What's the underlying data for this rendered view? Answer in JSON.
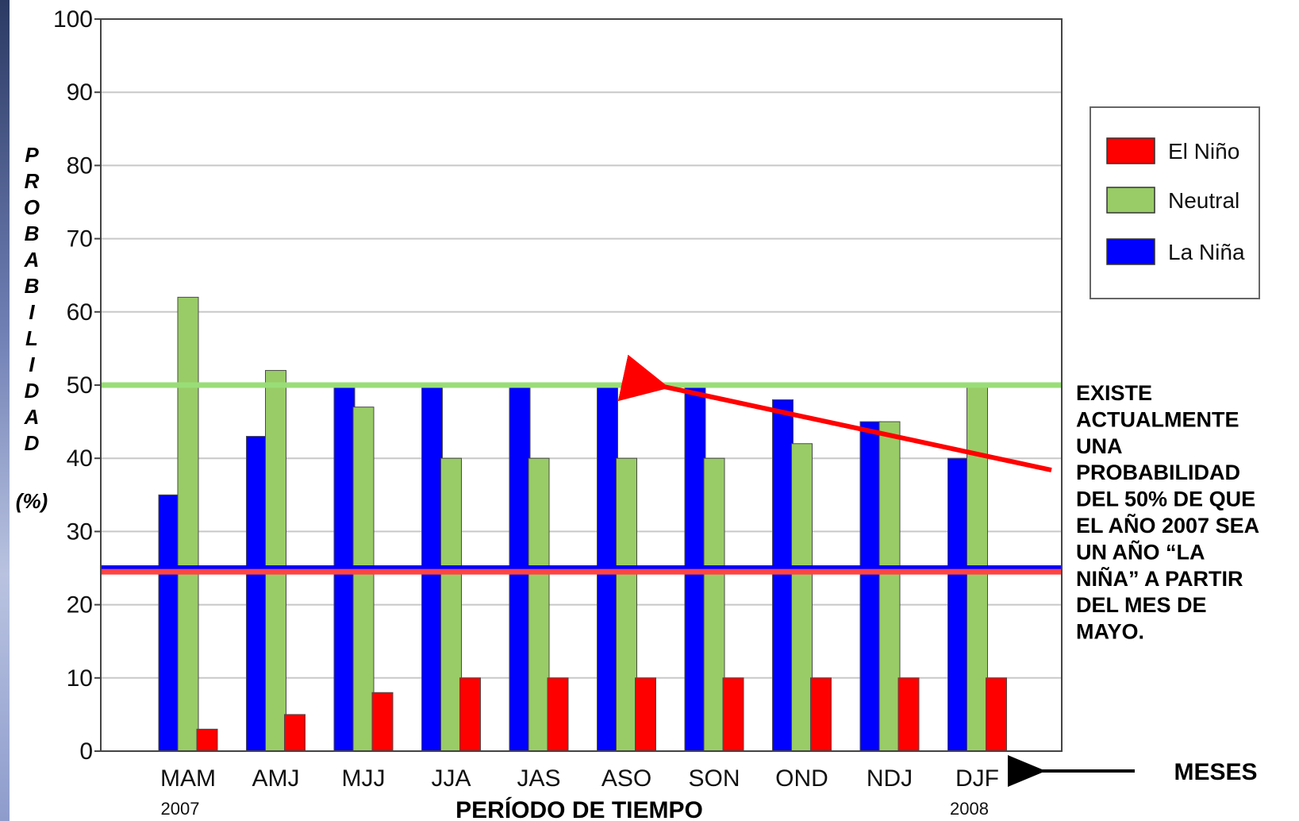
{
  "chart_data": {
    "type": "bar",
    "categories": [
      "MAM",
      "AMJ",
      "MJJ",
      "JJA",
      "JAS",
      "ASO",
      "SON",
      "OND",
      "NDJ",
      "DJF"
    ],
    "category_years": [
      "2007",
      "",
      "",
      "",
      "",
      "",
      "",
      "",
      "",
      "2008"
    ],
    "series": [
      {
        "name": "La Niña",
        "color": "#0000ff",
        "values": [
          35,
          43,
          50,
          50,
          50,
          50,
          50,
          48,
          45,
          40
        ]
      },
      {
        "name": "Neutral",
        "color": "#99cc66",
        "values": [
          62,
          52,
          47,
          40,
          40,
          40,
          40,
          42,
          45,
          50
        ]
      },
      {
        "name": "El Niño",
        "color": "#ff0000",
        "values": [
          3,
          5,
          8,
          10,
          10,
          10,
          10,
          10,
          10,
          10
        ]
      }
    ],
    "legend_order": [
      "El Niño",
      "Neutral",
      "La Niña"
    ],
    "legend_position": "top-right",
    "xlabel": "PERÍODO DE TIEMPO",
    "ylabel": "PROBABILIDAD",
    "yunit": "(%)",
    "ylim": [
      0,
      100
    ],
    "yticks": [
      0,
      10,
      20,
      30,
      40,
      50,
      60,
      70,
      80,
      90,
      100
    ],
    "grid": true,
    "reference_lines": [
      {
        "value": 50,
        "color": "#99dd77"
      },
      {
        "value": 25,
        "color": "#0000ff"
      },
      {
        "value": 24.5,
        "color": "#ff4444"
      }
    ],
    "annotation": {
      "lines": [
        "EXISTE",
        "ACTUALMENTE",
        "UNA",
        "PROBABILIDAD",
        "DEL 50% DE QUE",
        "EL AÑO 2007 SEA",
        "UN AÑO “LA",
        "NIÑA” A PARTIR",
        "DEL MES DE",
        "MAYO."
      ],
      "arrow_color": "#ff0000"
    },
    "x_pointer_label": "MESES"
  }
}
